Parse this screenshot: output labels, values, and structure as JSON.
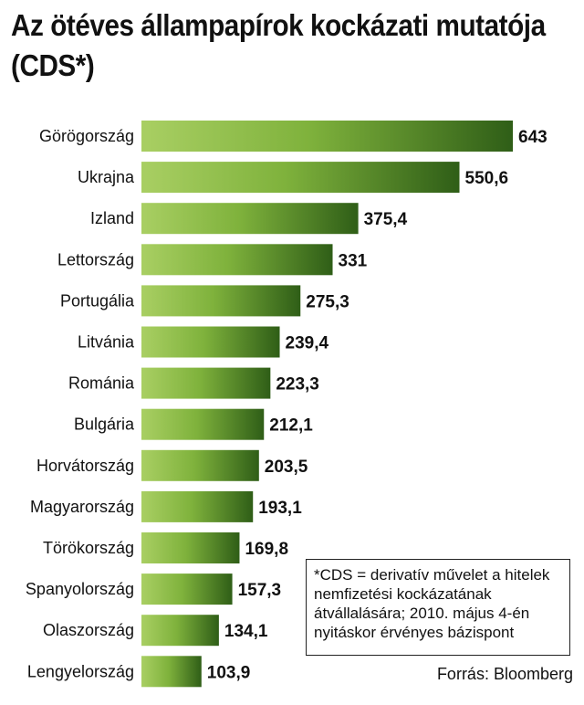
{
  "title": {
    "line1": "Az ötéves állampapírok kockázati mutatója",
    "line2": "(CDS*)"
  },
  "note": "*CDS = derivatív művelet a hitelek nemfizetési kockázatának átvállalására; 2010. május 4-én nyitáskor érvényes bázispont",
  "source": "Forrás: Bloomberg",
  "chart_data": {
    "type": "bar",
    "orientation": "horizontal",
    "title": "Az ötéves állampapírok kockázati mutatója (CDS*)",
    "categories": [
      "Görögország",
      "Ukrajna",
      "Izland",
      "Lettország",
      "Portugália",
      "Litvánia",
      "Románia",
      "Bulgária",
      "Horvátország",
      "Magyarország",
      "Törökország",
      "Spanyolország",
      "Olaszország",
      "Lengyelország"
    ],
    "values": [
      643,
      550.6,
      375.4,
      331,
      275.3,
      239.4,
      223.3,
      212.1,
      203.5,
      193.1,
      169.8,
      157.3,
      134.1,
      103.9
    ],
    "value_labels": [
      "643",
      "550,6",
      "375,4",
      "331",
      "275,3",
      "239,4",
      "223,3",
      "212,1",
      "203,5",
      "193,1",
      "169,8",
      "157,3",
      "134,1",
      "103,9"
    ],
    "xlim": [
      0,
      643
    ],
    "grid": false,
    "legend": "none",
    "colors": {
      "bar_light": "#a9cf63",
      "bar_mid": "#7fb23c",
      "bar_dark": "#2f5e17"
    }
  }
}
